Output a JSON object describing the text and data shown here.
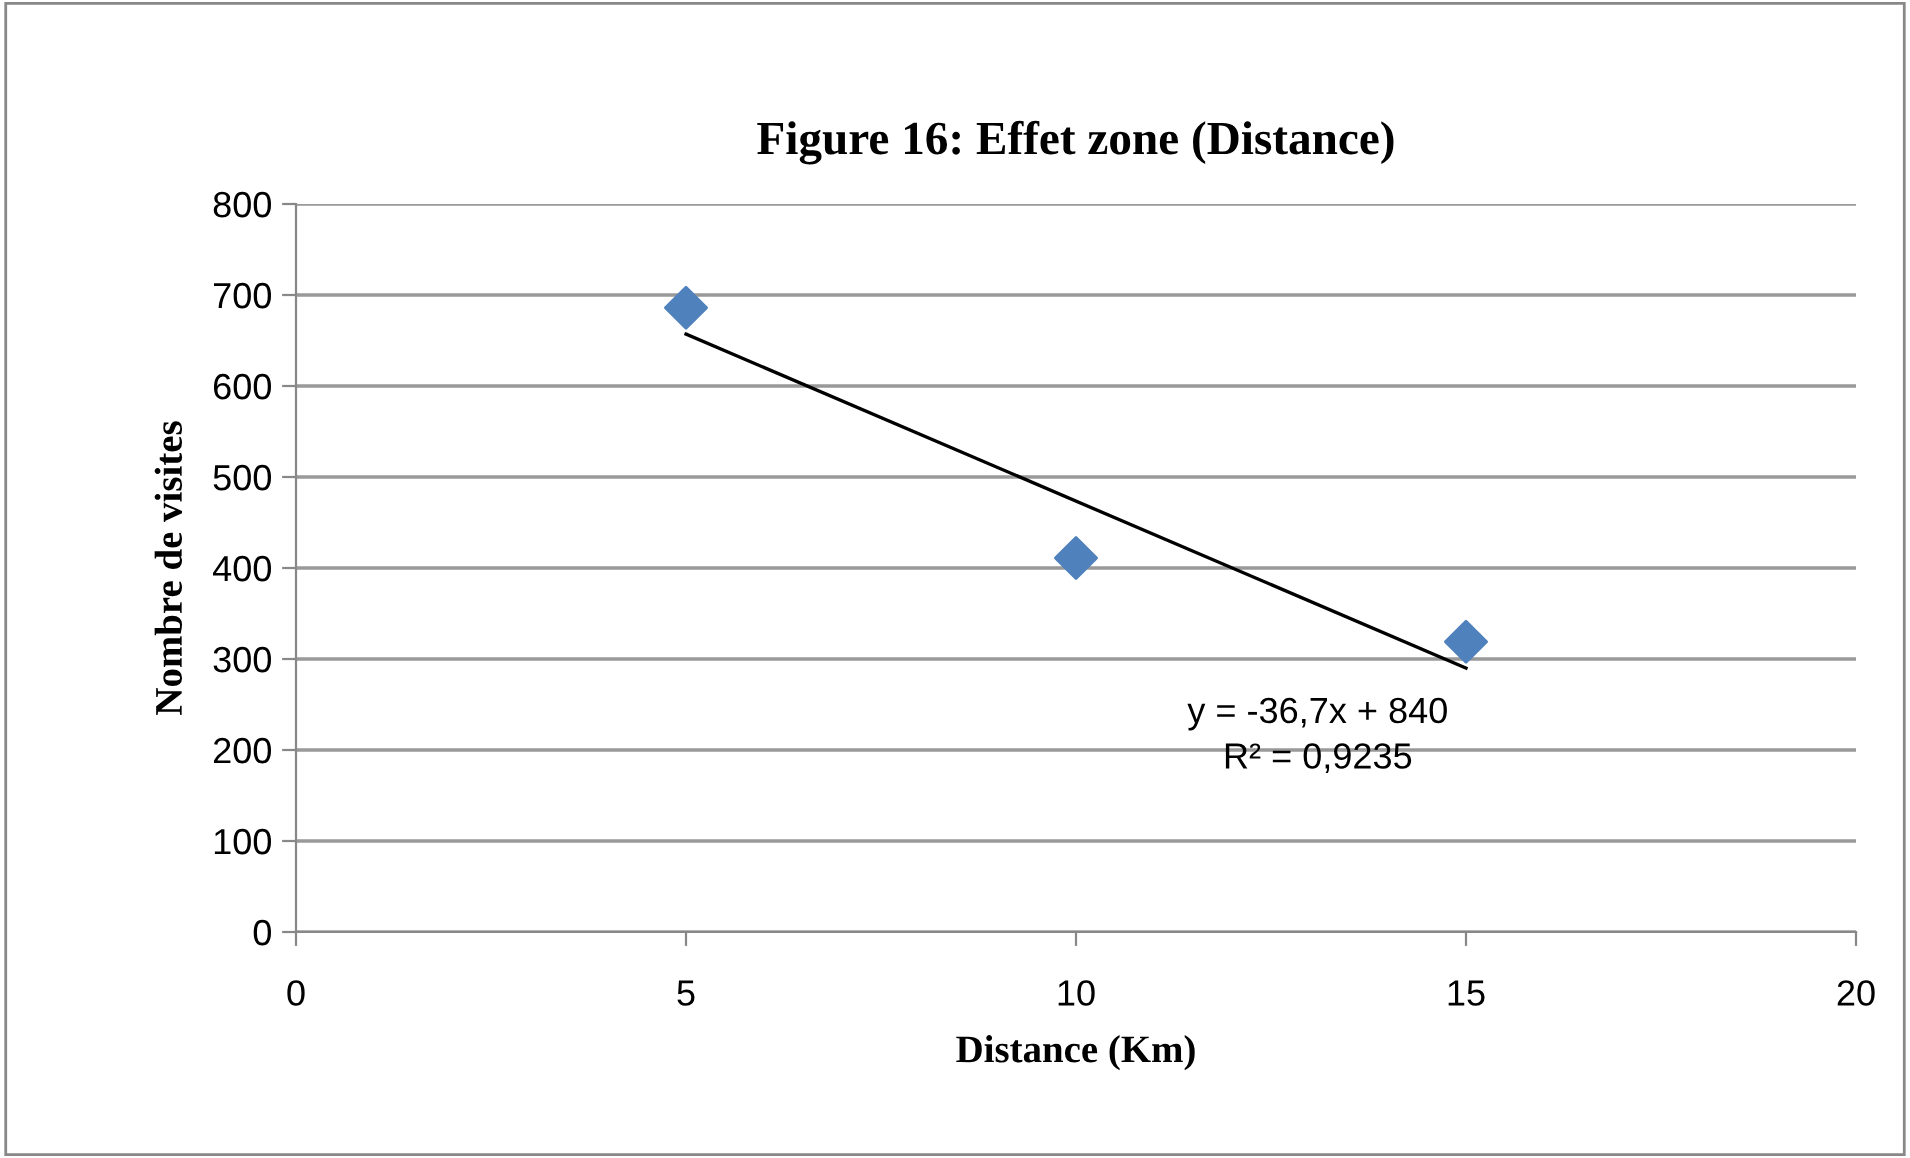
{
  "chart_data": {
    "type": "scatter",
    "title": "Figure 16: Effet zone (Distance)",
    "xlabel": "Distance (Km)",
    "ylabel": "Nombre de visites",
    "series": [
      {
        "color": "#4f81bd",
        "marker": "diamond",
        "x": [
          5,
          10,
          15
        ],
        "values": [
          686,
          411,
          319
        ]
      },
      {
        "type": "line",
        "color": "#000000",
        "marker": "none",
        "line_style": "solid",
        "x": [
          5,
          15
        ],
        "values": [
          657,
          290
        ]
      }
    ],
    "annotations": [
      "y = -36,7x + 840",
      "R² = 0,9235"
    ],
    "xlim": [
      0,
      20
    ],
    "xticks": [
      0,
      5,
      10,
      15,
      20
    ],
    "ylim": [
      0,
      800
    ],
    "yticks": [
      0,
      100,
      200,
      300,
      400,
      500,
      600,
      700,
      800
    ],
    "grid": "y",
    "legend": false
  }
}
